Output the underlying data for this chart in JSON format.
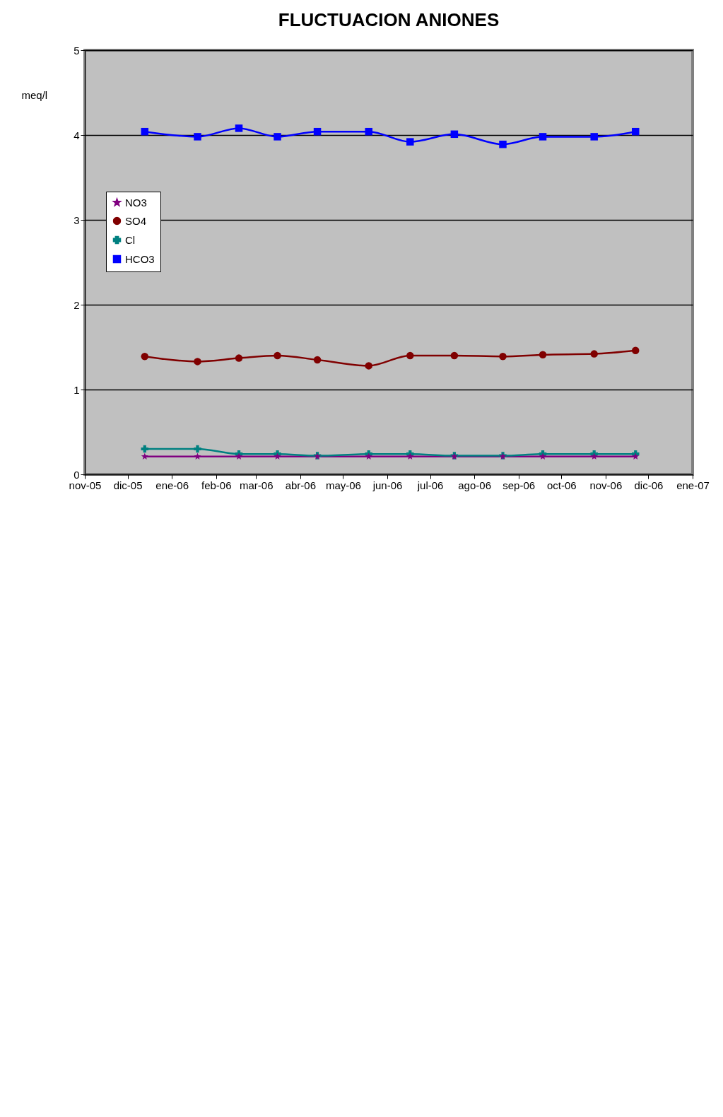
{
  "chart_data": {
    "type": "line",
    "title": "FLUCTUACION ANIONES",
    "ylabel": "meq/l",
    "x": [
      "2005-12-13",
      "2006-01-19",
      "2006-02-17",
      "2006-03-16",
      "2006-04-13",
      "2006-05-19",
      "2006-06-17",
      "2006-07-18",
      "2006-08-21",
      "2006-09-18",
      "2006-10-24",
      "2006-11-22"
    ],
    "series": [
      {
        "name": "NO3",
        "color": "#800080",
        "marker": "star",
        "values": [
          0.21,
          0.21,
          0.21,
          0.21,
          0.21,
          0.21,
          0.21,
          0.21,
          0.21,
          0.21,
          0.21,
          0.21
        ]
      },
      {
        "name": "SO4",
        "color": "#800000",
        "marker": "circle",
        "values": [
          1.39,
          1.33,
          1.37,
          1.4,
          1.35,
          1.28,
          1.4,
          1.4,
          1.39,
          1.41,
          1.42,
          1.46
        ]
      },
      {
        "name": "Cl",
        "color": "#008080",
        "marker": "cross",
        "values": [
          0.3,
          0.3,
          0.24,
          0.24,
          0.22,
          0.24,
          0.24,
          0.22,
          0.22,
          0.24,
          0.24,
          0.24
        ]
      },
      {
        "name": "HCO3",
        "color": "#0000ff",
        "marker": "square",
        "values": [
          4.04,
          3.98,
          4.08,
          3.98,
          4.04,
          4.04,
          3.92,
          4.01,
          3.89,
          3.98,
          3.98,
          4.04
        ]
      }
    ],
    "xlim": [
      "2005-11-01",
      "2007-01-01"
    ],
    "xticks": [
      {
        "value": "2005-11-01",
        "label": "nov-05"
      },
      {
        "value": "2005-12-01",
        "label": "dic-05"
      },
      {
        "value": "2006-01-01",
        "label": "ene-06"
      },
      {
        "value": "2006-02-01",
        "label": "feb-06"
      },
      {
        "value": "2006-03-01",
        "label": "mar-06"
      },
      {
        "value": "2006-04-01",
        "label": "abr-06"
      },
      {
        "value": "2006-05-01",
        "label": "may-06"
      },
      {
        "value": "2006-06-01",
        "label": "jun-06"
      },
      {
        "value": "2006-07-01",
        "label": "jul-06"
      },
      {
        "value": "2006-08-01",
        "label": "ago-06"
      },
      {
        "value": "2006-09-01",
        "label": "sep-06"
      },
      {
        "value": "2006-10-01",
        "label": "oct-06"
      },
      {
        "value": "2006-11-01",
        "label": "nov-06"
      },
      {
        "value": "2006-12-01",
        "label": "dic-06"
      },
      {
        "value": "2007-01-01",
        "label": "ene-07"
      }
    ],
    "ylim": [
      0,
      5
    ],
    "yticks": [
      0,
      1,
      2,
      3,
      4,
      5
    ],
    "grid": "y",
    "legend": "left",
    "line_style": "solid"
  }
}
